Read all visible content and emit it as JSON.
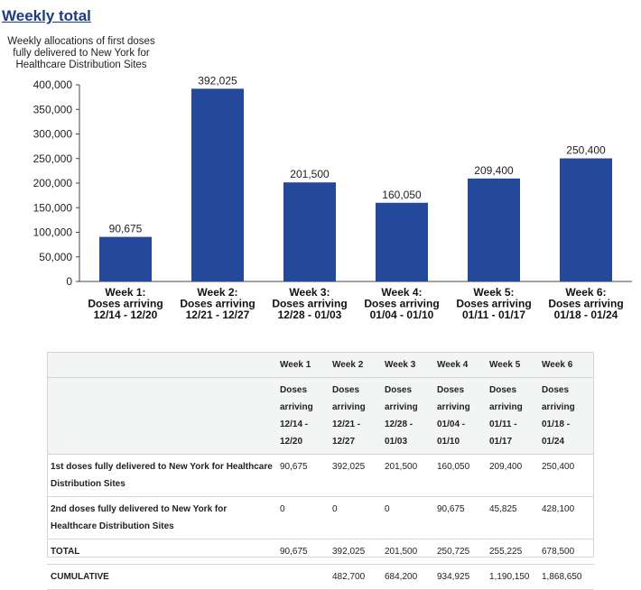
{
  "page": {
    "title": "Weekly total"
  },
  "chart_data": {
    "type": "bar",
    "title": "Weekly allocations of first doses fully delivered to New York for Healthcare Distribution Sites",
    "categories": [
      [
        "Week 1:",
        "Doses arriving",
        "12/14 - 12/20"
      ],
      [
        "Week 2:",
        "Doses arriving",
        "12/21 - 12/27"
      ],
      [
        "Week 3:",
        "Doses arriving",
        "12/28 - 01/03"
      ],
      [
        "Week 4:",
        "Doses arriving",
        "01/04 - 01/10"
      ],
      [
        "Week 5:",
        "Doses arriving",
        "01/11 - 01/17"
      ],
      [
        "Week 6:",
        "Doses arriving",
        "01/18 - 01/24"
      ]
    ],
    "values": [
      90675,
      392025,
      201500,
      160050,
      209400,
      250400
    ],
    "value_labels": [
      "90,675",
      "392,025",
      "201,500",
      "160,050",
      "209,400",
      "250,400"
    ],
    "ylim": [
      0,
      400000
    ],
    "yticks": [
      0,
      50000,
      100000,
      150000,
      200000,
      250000,
      300000,
      350000,
      400000
    ],
    "ytick_labels": [
      "0",
      "50,000",
      "100,000",
      "150,000",
      "200,000",
      "250,000",
      "300,000",
      "350,000",
      "400,000"
    ],
    "bar_color": "#24489a",
    "grid": false,
    "legend": "none"
  },
  "table": {
    "header_weeks": [
      "Week 1",
      "Week 2",
      "Week 3",
      "Week 4",
      "Week 5",
      "Week 6"
    ],
    "header_doses": [
      [
        "Doses",
        "arriving",
        "12/14 -",
        "12/20"
      ],
      [
        "Doses",
        "arriving",
        "12/21 -",
        "12/27"
      ],
      [
        "Doses",
        "arriving",
        "12/28 -",
        "01/03"
      ],
      [
        "Doses",
        "arriving",
        "01/04 -",
        "01/10"
      ],
      [
        "Doses",
        "arriving",
        "01/11 -",
        "01/17"
      ],
      [
        "Doses",
        "arriving",
        "01/18 -",
        "01/24"
      ]
    ],
    "rows": [
      {
        "label": "1st doses fully delivered to New York for Healthcare Distribution Sites",
        "values": [
          "90,675",
          "392,025",
          "201,500",
          "160,050",
          "209,400",
          "250,400"
        ]
      },
      {
        "label": "2nd doses fully delivered to New York for Healthcare Distribution Sites",
        "values": [
          "0",
          "0",
          "0",
          "90,675",
          "45,825",
          "428,100"
        ]
      },
      {
        "label": "TOTAL",
        "values": [
          "90,675",
          "392,025",
          "201,500",
          "250,725",
          "255,225",
          "678,500"
        ]
      },
      {
        "label": "CUMULATIVE",
        "values": [
          "",
          "482,700",
          "684,200",
          "934,925",
          "1,190,150",
          "1,868,650"
        ]
      }
    ]
  }
}
